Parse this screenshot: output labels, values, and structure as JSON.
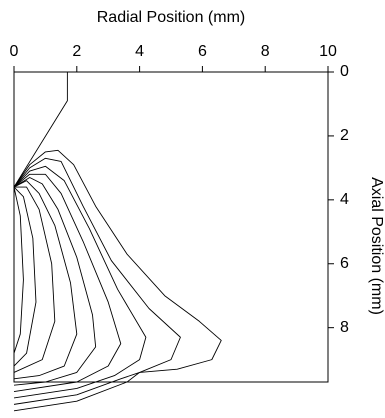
{
  "chart_data": {
    "type": "line",
    "x_label": "Radial Position (mm)",
    "y_label": "Axial Position (mm)",
    "xlim": [
      0,
      10
    ],
    "xticks": [
      0,
      2,
      4,
      6,
      8,
      10
    ],
    "ylim": [
      0,
      9.7
    ],
    "yticks": [
      0,
      2,
      4,
      6,
      8
    ],
    "y_inverted": true,
    "color": "#000000",
    "series": [
      {
        "x": [
          1.7,
          1.7,
          0
        ],
        "values": [
          0,
          0.9,
          3.6
        ]
      },
      {
        "x": [
          0,
          0.5,
          1.0,
          1.4,
          1.9,
          2.6,
          3.6,
          4.8,
          5.9,
          6.6,
          6.3,
          5.2,
          4.0,
          3.6,
          2.0,
          0
        ],
        "values": [
          3.6,
          2.9,
          2.5,
          2.45,
          2.9,
          4.2,
          5.7,
          7.0,
          7.8,
          8.4,
          9.0,
          9.3,
          9.4,
          9.7,
          10.3,
          10.6
        ]
      },
      {
        "x": [
          0,
          0.5,
          1.0,
          1.5,
          2.2,
          3.1,
          4.3,
          5.3,
          5.0,
          4.0,
          3.4,
          2.0,
          0
        ],
        "values": [
          3.6,
          3.0,
          2.7,
          2.8,
          4.2,
          5.9,
          7.4,
          8.3,
          9.0,
          9.4,
          9.6,
          10.1,
          10.4
        ]
      },
      {
        "x": [
          0,
          0.5,
          1.0,
          1.6,
          2.4,
          3.3,
          4.2,
          4.0,
          3.2,
          2.0,
          0
        ],
        "values": [
          3.6,
          3.1,
          2.95,
          3.4,
          4.9,
          6.8,
          8.3,
          9.0,
          9.5,
          9.9,
          10.2
        ]
      },
      {
        "x": [
          0,
          0.5,
          1.0,
          1.5,
          2.2,
          3.0,
          3.4,
          3.0,
          2.0,
          0
        ],
        "values": [
          3.6,
          3.2,
          3.2,
          3.8,
          5.3,
          7.2,
          8.5,
          9.2,
          9.7,
          10.0
        ]
      },
      {
        "x": [
          0,
          0.5,
          0.9,
          1.4,
          2.0,
          2.5,
          2.6,
          2.0,
          1.0,
          0
        ],
        "values": [
          3.6,
          3.3,
          3.5,
          4.3,
          5.8,
          7.6,
          8.6,
          9.4,
          9.7,
          9.8
        ]
      },
      {
        "x": [
          0,
          0.4,
          0.8,
          1.3,
          1.8,
          2.0,
          1.6,
          0.8,
          0
        ],
        "values": [
          3.6,
          3.4,
          3.8,
          4.8,
          6.6,
          8.2,
          9.2,
          9.5,
          9.6
        ]
      },
      {
        "x": [
          0,
          0.4,
          0.8,
          1.2,
          1.3,
          0.9,
          0
        ],
        "values": [
          3.6,
          3.6,
          4.3,
          6.0,
          7.8,
          9.0,
          9.4
        ]
      },
      {
        "x": [
          0,
          0.3,
          0.6,
          0.7,
          0.4,
          0
        ],
        "values": [
          3.6,
          3.9,
          5.2,
          7.2,
          8.8,
          9.2
        ]
      },
      {
        "x": [
          0,
          0.2,
          0.3,
          0.2,
          0
        ],
        "values": [
          3.6,
          4.5,
          6.5,
          8.2,
          8.8
        ]
      }
    ]
  }
}
